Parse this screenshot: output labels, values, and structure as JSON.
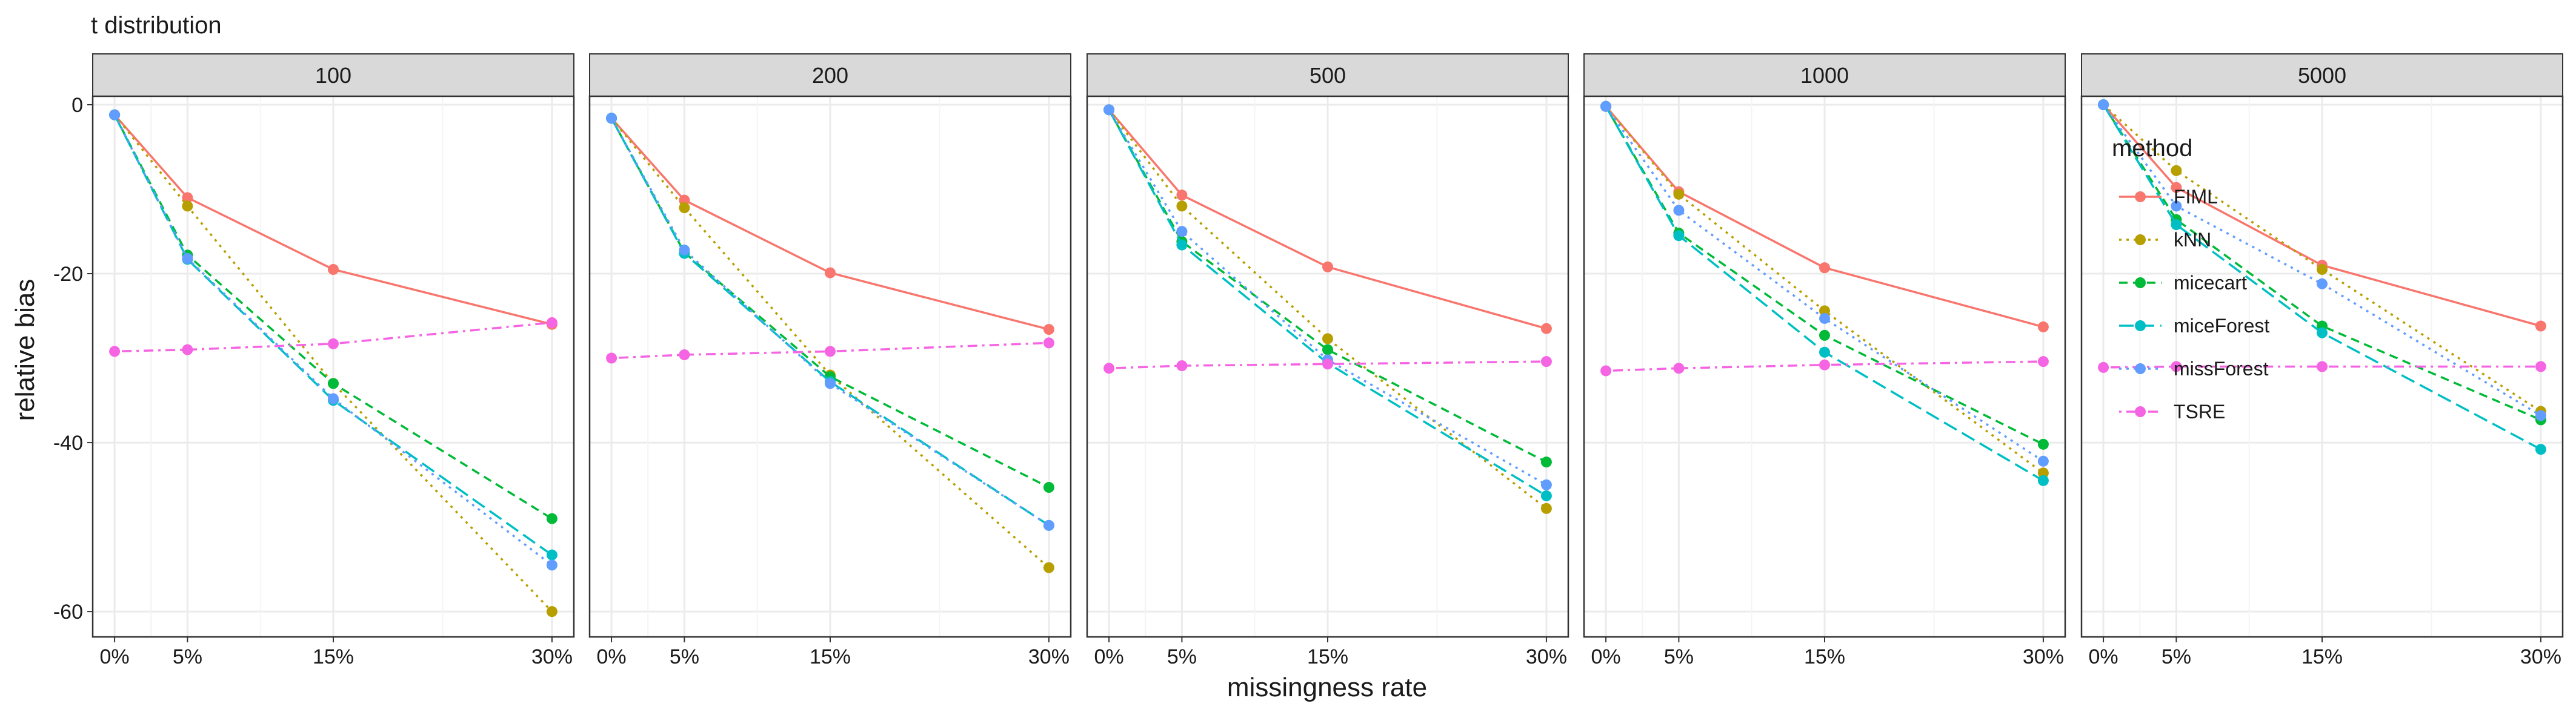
{
  "chart_data": {
    "type": "line",
    "title": "t distribution",
    "xlabel": "missingness rate",
    "ylabel": "relative bias",
    "x_ticks": [
      "0%",
      "5%",
      "15%",
      "30%"
    ],
    "x": [
      0,
      5,
      15,
      30
    ],
    "xlim": [
      -1.5,
      31.5
    ],
    "ylim": [
      -63,
      1
    ],
    "y_ticks": [
      0,
      -20,
      -40,
      -60
    ],
    "y_tick_labels": [
      "0",
      "-20",
      "-40",
      "-60"
    ],
    "grid": true,
    "legend_title": "method",
    "legend_position": "inside-right",
    "facets": [
      {
        "label": "100",
        "series": [
          {
            "name": "FIML",
            "values": [
              -1.2,
              -11,
              -19.5,
              -26
            ]
          },
          {
            "name": "kNN",
            "values": [
              -1.2,
              -12,
              -33,
              -60
            ]
          },
          {
            "name": "micecart",
            "values": [
              -1.2,
              -17.8,
              -33,
              -49
            ]
          },
          {
            "name": "miceForest",
            "values": [
              -1.2,
              -18.3,
              -35,
              -53.3
            ]
          },
          {
            "name": "missForest",
            "values": [
              -1.2,
              -18.2,
              -34.8,
              -54.5
            ]
          },
          {
            "name": "TSRE",
            "values": [
              -29.2,
              -29,
              -28.3,
              -25.8
            ]
          }
        ]
      },
      {
        "label": "200",
        "series": [
          {
            "name": "FIML",
            "values": [
              -1.6,
              -11.3,
              -19.9,
              -26.6
            ]
          },
          {
            "name": "kNN",
            "values": [
              -1.6,
              -12.2,
              -32,
              -54.8
            ]
          },
          {
            "name": "micecart",
            "values": [
              -1.6,
              -17.5,
              -32.2,
              -45.3
            ]
          },
          {
            "name": "miceForest",
            "values": [
              -1.6,
              -17.6,
              -32.8,
              -49.8
            ]
          },
          {
            "name": "missForest",
            "values": [
              -1.6,
              -17.2,
              -33,
              -49.8
            ]
          },
          {
            "name": "TSRE",
            "values": [
              -30,
              -29.6,
              -29.2,
              -28.2
            ]
          }
        ]
      },
      {
        "label": "500",
        "series": [
          {
            "name": "FIML",
            "values": [
              -0.6,
              -10.7,
              -19.2,
              -26.5
            ]
          },
          {
            "name": "kNN",
            "values": [
              -0.6,
              -12,
              -27.7,
              -47.8
            ]
          },
          {
            "name": "micecart",
            "values": [
              -0.6,
              -16.2,
              -29,
              -42.3
            ]
          },
          {
            "name": "miceForest",
            "values": [
              -0.6,
              -16.6,
              -30.6,
              -46.3
            ]
          },
          {
            "name": "missForest",
            "values": [
              -0.6,
              -15,
              -30.2,
              -45
            ]
          },
          {
            "name": "TSRE",
            "values": [
              -31.2,
              -30.9,
              -30.7,
              -30.4
            ]
          }
        ]
      },
      {
        "label": "1000",
        "series": [
          {
            "name": "FIML",
            "values": [
              -0.2,
              -10.3,
              -19.3,
              -26.3
            ]
          },
          {
            "name": "kNN",
            "values": [
              -0.2,
              -10.6,
              -24.4,
              -43.6
            ]
          },
          {
            "name": "micecart",
            "values": [
              -0.2,
              -15.2,
              -27.3,
              -40.2
            ]
          },
          {
            "name": "miceForest",
            "values": [
              -0.2,
              -15.5,
              -29.3,
              -44.5
            ]
          },
          {
            "name": "missForest",
            "values": [
              -0.2,
              -12.5,
              -25.3,
              -42.2
            ]
          },
          {
            "name": "TSRE",
            "values": [
              -31.5,
              -31.2,
              -30.8,
              -30.4
            ]
          }
        ]
      },
      {
        "label": "5000",
        "series": [
          {
            "name": "FIML",
            "values": [
              0,
              -9.8,
              -19,
              -26.2
            ]
          },
          {
            "name": "kNN",
            "values": [
              0,
              -7.8,
              -19.5,
              -36.3
            ]
          },
          {
            "name": "micecart",
            "values": [
              0,
              -13.6,
              -26.2,
              -37.3
            ]
          },
          {
            "name": "miceForest",
            "values": [
              0,
              -14.2,
              -27,
              -40.8
            ]
          },
          {
            "name": "missForest",
            "values": [
              0,
              -12,
              -21.2,
              -36.8
            ]
          },
          {
            "name": "TSRE",
            "values": [
              -31.1,
              -31,
              -31,
              -31
            ]
          }
        ]
      }
    ]
  },
  "style": {
    "series_colors": {
      "FIML": "#F8766D",
      "kNN": "#B79F00",
      "micecart": "#00BA38",
      "miceForest": "#00BFC4",
      "missForest": "#619CFF",
      "TSRE": "#F564E3"
    },
    "series_dash": {
      "FIML": "solid",
      "kNN": "dotted",
      "micecart": "dashed",
      "miceForest": "longdash",
      "missForest": "dotted",
      "TSRE": "dotdash"
    },
    "strip_fill": "#D9D9D9",
    "panel_border": "#333333",
    "grid_major": "#EBEBEB"
  }
}
